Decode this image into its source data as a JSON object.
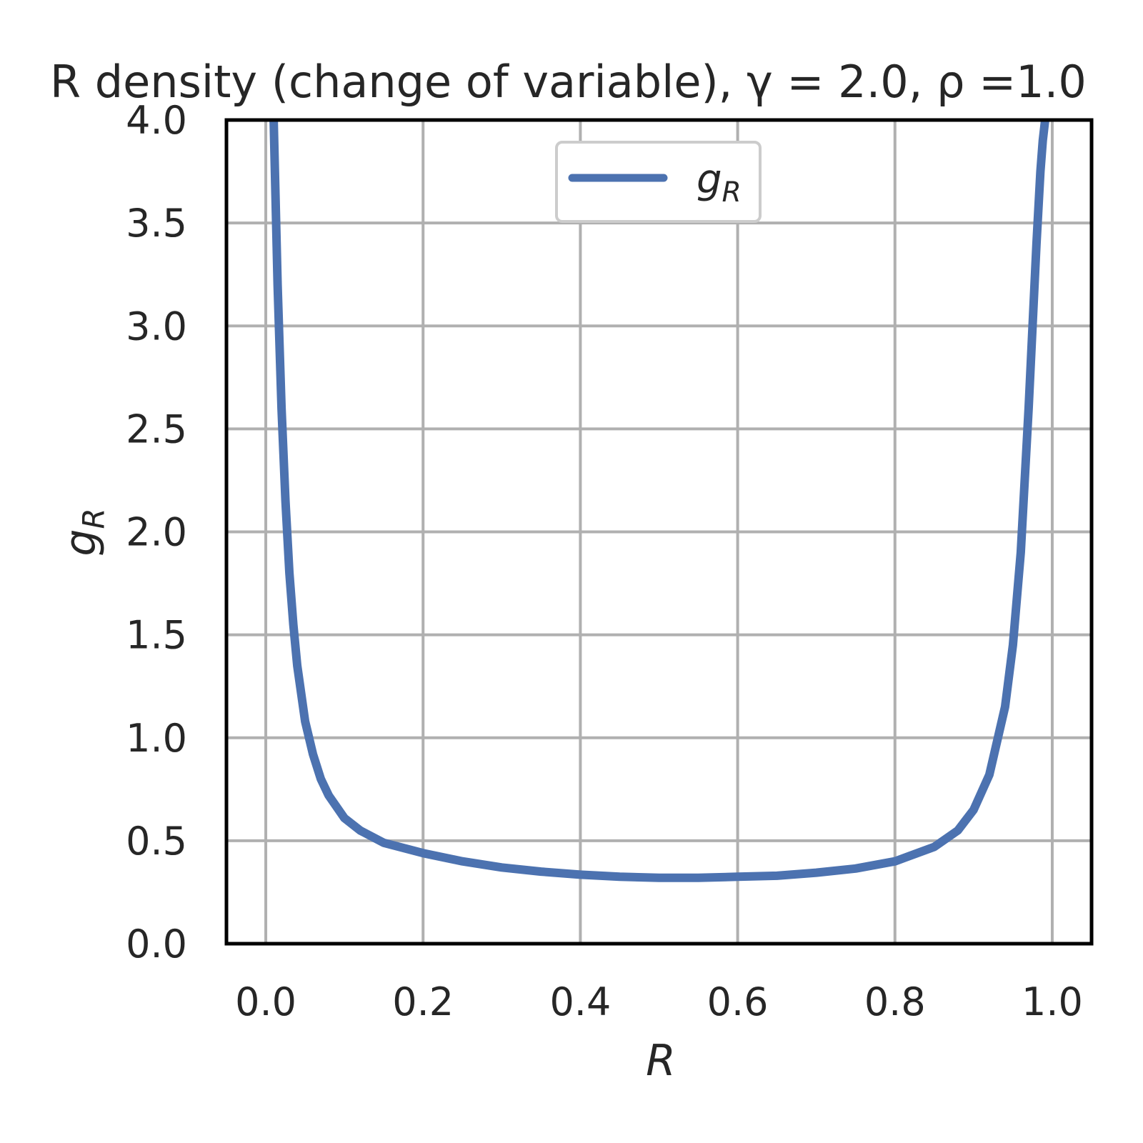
{
  "chart_data": {
    "type": "line",
    "title": "R density (change of variable), γ = 2.0, ρ =1.0",
    "xlabel": "R",
    "ylabel": "g_R",
    "xlim": [
      -0.05,
      1.05
    ],
    "ylim": [
      0.0,
      4.0
    ],
    "x_ticks": [
      0.0,
      0.2,
      0.4,
      0.6,
      0.8,
      1.0
    ],
    "x_tick_labels": [
      "0.0",
      "0.2",
      "0.4",
      "0.6",
      "0.8",
      "1.0"
    ],
    "y_ticks": [
      0.0,
      0.5,
      1.0,
      1.5,
      2.0,
      2.5,
      3.0,
      3.5,
      4.0
    ],
    "y_tick_labels": [
      "0.0",
      "0.5",
      "1.0",
      "1.5",
      "2.0",
      "2.5",
      "3.0",
      "3.5",
      "4.0"
    ],
    "grid": true,
    "legend": {
      "placement": "upper center",
      "entries": [
        {
          "label": "g_R",
          "color": "#4c72b0"
        }
      ]
    },
    "series": [
      {
        "name": "g_R",
        "color": "#4c72b0",
        "x": [
          0.01,
          0.015,
          0.02,
          0.025,
          0.03,
          0.035,
          0.04,
          0.05,
          0.06,
          0.07,
          0.08,
          0.1,
          0.12,
          0.15,
          0.18,
          0.2,
          0.25,
          0.3,
          0.35,
          0.4,
          0.45,
          0.5,
          0.55,
          0.6,
          0.65,
          0.7,
          0.75,
          0.8,
          0.85,
          0.88,
          0.9,
          0.92,
          0.94,
          0.95,
          0.96,
          0.97,
          0.975,
          0.98,
          0.985,
          0.988,
          0.991,
          0.993
        ],
        "y": [
          4.0,
          3.2,
          2.6,
          2.15,
          1.8,
          1.55,
          1.35,
          1.08,
          0.92,
          0.8,
          0.72,
          0.61,
          0.55,
          0.49,
          0.46,
          0.44,
          0.4,
          0.37,
          0.35,
          0.335,
          0.325,
          0.32,
          0.32,
          0.325,
          0.33,
          0.345,
          0.365,
          0.4,
          0.47,
          0.55,
          0.65,
          0.82,
          1.15,
          1.45,
          1.9,
          2.6,
          3.0,
          3.4,
          3.75,
          3.9,
          4.0,
          4.0
        ]
      }
    ]
  }
}
